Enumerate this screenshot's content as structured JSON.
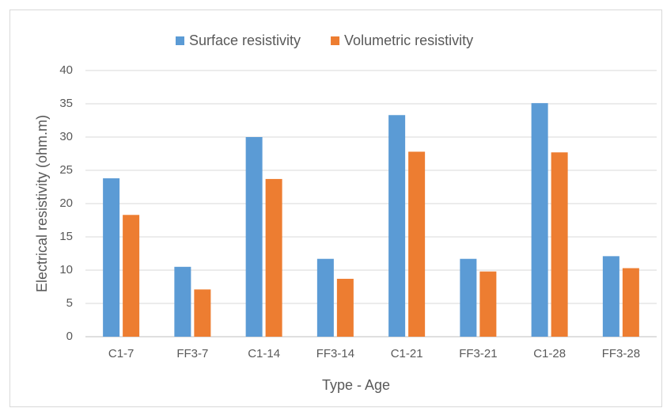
{
  "chart_data": {
    "type": "bar",
    "x_label": "Type - Age",
    "y_label": "Electrical resistivity (ohm.m)",
    "categories": [
      "C1-7",
      "FF3-7",
      "C1-14",
      "FF3-14",
      "C1-21",
      "FF3-21",
      "C1-28",
      "FF3-28"
    ],
    "series": [
      {
        "name": "Surface resistivity",
        "color": "#5b9bd5",
        "values": [
          23.8,
          10.5,
          30.0,
          11.7,
          33.3,
          11.7,
          35.1,
          12.1
        ]
      },
      {
        "name": "Volumetric resistivity",
        "color": "#ed7d31",
        "values": [
          18.3,
          7.1,
          23.7,
          8.7,
          27.8,
          9.8,
          27.7,
          10.3
        ]
      }
    ],
    "ylim": [
      0,
      40
    ],
    "yticks": [
      0,
      5,
      10,
      15,
      20,
      25,
      30,
      35,
      40
    ],
    "grid": true,
    "legend": "top"
  }
}
